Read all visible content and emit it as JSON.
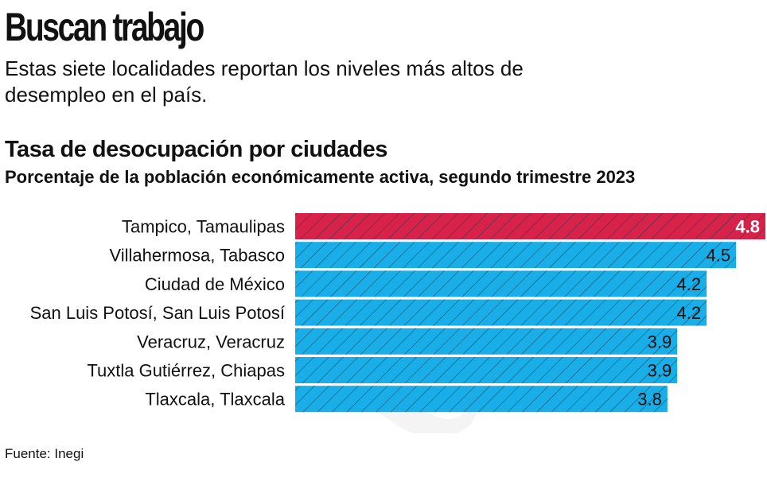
{
  "headline": "Buscan trabajo",
  "intro": "Estas siete localidades reportan los niveles más altos de desempleo en el país.",
  "source": "Fuente: Inegi",
  "colors": {
    "highlight": "#d7234a",
    "bar": "#19aee8",
    "hatch": "#10394f"
  },
  "chart_data": {
    "type": "bar",
    "orientation": "horizontal",
    "title": "Tasa de desocupación por ciudades",
    "subtitle": "Porcentaje de la población económicamente activa, segundo trimestre 2023",
    "categories": [
      "Tampico, Tamaulipas",
      "Villahermosa, Tabasco",
      "Ciudad de México",
      "San Luis Potosí, San Luis Potosí",
      "Veracruz, Veracruz",
      "Tuxtla Gutiérrez, Chiapas",
      "Tlaxcala, Tlaxcala"
    ],
    "values": [
      4.8,
      4.5,
      4.2,
      4.2,
      3.9,
      3.9,
      3.8
    ],
    "labels": [
      "4.8",
      "4.5",
      "4.2",
      "4.2",
      "3.9",
      "3.9",
      "3.8"
    ],
    "highlight_index": 0,
    "xlim": [
      0,
      4.8
    ],
    "grid": false,
    "legend": "none"
  }
}
